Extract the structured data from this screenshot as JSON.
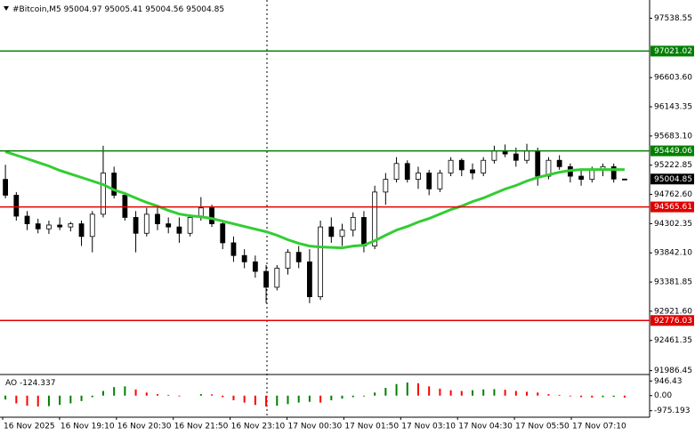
{
  "chart_data": {
    "type": "candlestick",
    "symbol": "#Bitcoin,M5",
    "candles": {
      "open": [
        95000,
        94750,
        94420,
        94300,
        94220,
        94280,
        94250,
        94300,
        94100,
        94450,
        95100,
        94750,
        94400,
        94150,
        94450,
        94300,
        94250,
        94150,
        94400,
        94550,
        94300,
        94000,
        93800,
        93700,
        93550,
        93300,
        93600,
        93850,
        93700,
        93150,
        94250,
        94100,
        94200,
        94400,
        93950,
        94800,
        95000,
        95250,
        95000,
        95100,
        94850,
        95100,
        95300,
        95150,
        95100,
        95300,
        95450,
        95400,
        95300,
        95450,
        95050,
        95300,
        95200,
        95050,
        95000,
        95150,
        95200,
        95004.97
      ],
      "high": [
        95230,
        94800,
        94500,
        94380,
        94350,
        94400,
        94330,
        94350,
        94500,
        95530,
        95200,
        94800,
        94500,
        94550,
        94600,
        94400,
        94400,
        94450,
        94720,
        94600,
        94350,
        94100,
        93900,
        93800,
        93650,
        93650,
        93900,
        93950,
        93900,
        94350,
        94400,
        94300,
        94480,
        94500,
        94900,
        95100,
        95350,
        95300,
        95200,
        95150,
        95150,
        95350,
        95330,
        95250,
        95350,
        95530,
        95550,
        95500,
        95560,
        95500,
        95350,
        95380,
        95250,
        95150,
        95200,
        95250,
        95250,
        95005.41
      ],
      "low": [
        94700,
        94350,
        94200,
        94150,
        94140,
        94200,
        94180,
        93950,
        93850,
        94400,
        94700,
        94350,
        93850,
        94100,
        94200,
        94150,
        94000,
        94100,
        94350,
        94250,
        93900,
        93700,
        93600,
        93450,
        93050,
        93250,
        93500,
        93600,
        93050,
        93100,
        94000,
        93950,
        94100,
        93850,
        93900,
        94600,
        94950,
        94950,
        94850,
        94750,
        94800,
        95050,
        95050,
        95000,
        95050,
        95250,
        95350,
        95200,
        95250,
        94900,
        95000,
        95150,
        94950,
        94900,
        94950,
        95050,
        94950,
        95004.56
      ],
      "close": [
        94750,
        94420,
        94300,
        94220,
        94280,
        94250,
        94300,
        94100,
        94450,
        95100,
        94750,
        94400,
        94150,
        94450,
        94300,
        94250,
        94150,
        94400,
        94550,
        94300,
        94000,
        93800,
        93700,
        93550,
        93300,
        93600,
        93850,
        93700,
        93150,
        94250,
        94100,
        94200,
        94400,
        93950,
        94800,
        95000,
        95250,
        95000,
        95100,
        94850,
        95100,
        95300,
        95150,
        95100,
        95300,
        95450,
        95400,
        95300,
        95450,
        95050,
        95300,
        95200,
        95050,
        95000,
        95150,
        95200,
        95004.97,
        95004.85
      ],
      "up_color": "#ffffff",
      "down_color": "#000000",
      "wick_color": "#000000"
    },
    "ma": {
      "color": "#32cd32",
      "values": [
        95435,
        95380,
        95324,
        95267,
        95211,
        95141,
        95085,
        95029,
        94973,
        94917,
        94833,
        94777,
        94706,
        94636,
        94580,
        94510,
        94454,
        94426,
        94412,
        94384,
        94342,
        94300,
        94258,
        94216,
        94174,
        94118,
        94048,
        93991,
        93949,
        93935,
        93928,
        93921,
        93949,
        93963,
        94033,
        94118,
        94202,
        94258,
        94328,
        94384,
        94454,
        94524,
        94580,
        94650,
        94706,
        94777,
        94847,
        94903,
        94973,
        95029,
        95071,
        95113,
        95141,
        95155,
        95155,
        95155,
        95155,
        95155
      ]
    },
    "levels": [
      {
        "value": 97021.02,
        "color": "#008000"
      },
      {
        "value": 95449.06,
        "color": "#008000"
      },
      {
        "value": 94565.61,
        "color": "#e00000"
      },
      {
        "value": 92776.03,
        "color": "#e00000"
      }
    ],
    "ylim": [
      91925,
      97826
    ],
    "yticks": [
      97538.55,
      {
        "value": 96603.6,
        "label": "96603.60"
      },
      96143.35,
      {
        "value": 95683.1,
        "label": "95683.10"
      },
      95222.85,
      {
        "value": 94762.6,
        "label": "94762.60"
      },
      94302.35,
      {
        "value": 93842.1,
        "label": "93842.10"
      },
      93381.85,
      {
        "value": 92921.6,
        "label": "92921.60"
      },
      92461.35,
      91986.45
    ],
    "time_labels": [
      "16 Nov 2025",
      "16 Nov 19:10",
      "16 Nov 20:30",
      "16 Nov 21:50",
      "16 Nov 23:10",
      "17 Nov 00:30",
      "17 Nov 01:50",
      "17 Nov 03:10",
      "17 Nov 04:30",
      "17 Nov 05:50",
      "17 Nov 07:10"
    ],
    "ao": {
      "name": "AO",
      "up_color": "#008000",
      "down_color": "#ff0000",
      "ylim": [
        -1395,
        1366
      ],
      "yticks": [
        946.43,
        {
          "value": 0,
          "label": "0.00"
        },
        -975.193
      ],
      "values": [
        -250,
        -500,
        -650,
        -700,
        -680,
        -600,
        -500,
        -350,
        -100,
        300,
        550,
        600,
        400,
        200,
        100,
        50,
        -50,
        0,
        100,
        80,
        -100,
        -300,
        -450,
        -600,
        -700,
        -650,
        -550,
        -450,
        -400,
        -450,
        -300,
        -200,
        -100,
        -50,
        200,
        500,
        750,
        850,
        800,
        600,
        450,
        350,
        300,
        350,
        400,
        420,
        380,
        300,
        250,
        200,
        100,
        50,
        -50,
        -100,
        -120,
        -100,
        -80,
        -124.337
      ]
    }
  }
}
